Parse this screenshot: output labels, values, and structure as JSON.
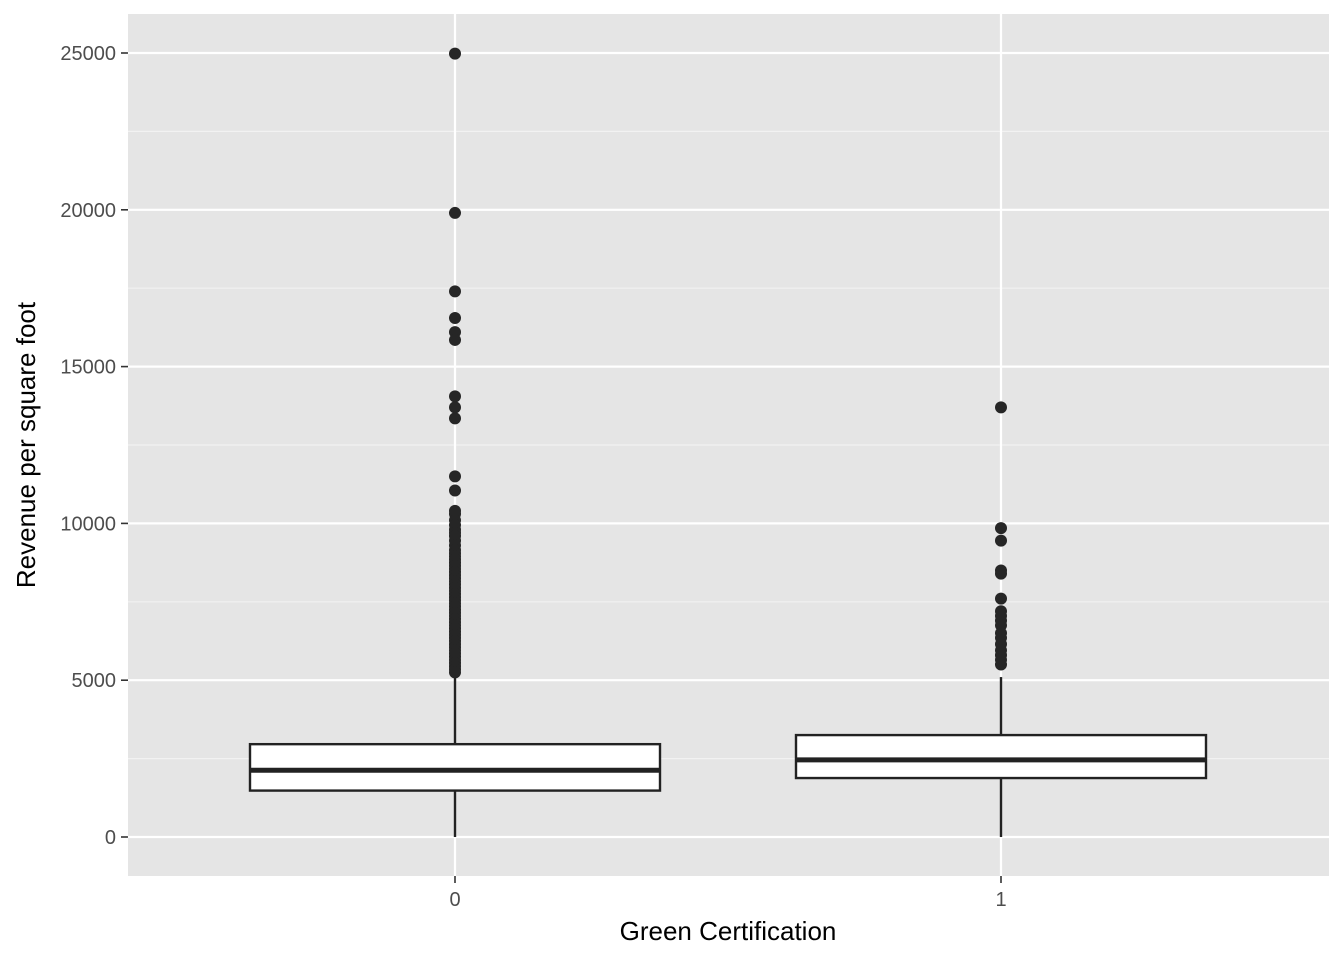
{
  "chart_data": {
    "type": "boxplot",
    "title": "",
    "xlabel": "Green Certification",
    "ylabel": "Revenue per square foot",
    "categories": [
      "0",
      "1"
    ],
    "ylim": [
      -1200,
      26200
    ],
    "yticks": [
      0,
      5000,
      10000,
      15000,
      20000,
      25000
    ],
    "ytick_labels": [
      "0",
      "5000",
      "10000",
      "15000",
      "20000",
      "25000"
    ],
    "grid": true,
    "legend": "none",
    "colors": {
      "panel_background": "#e5e5e5",
      "grid_line": "#ffffff",
      "box_fill": "#ffffff",
      "box_stroke": "#222222",
      "outlier": "#262626"
    },
    "boxes": [
      {
        "category": "0",
        "whisker_low": 0,
        "q1": 1480,
        "median": 2130,
        "q3": 2960,
        "whisker_high": 5200,
        "outliers": [
          24980,
          19900,
          17400,
          16550,
          16100,
          15850,
          14050,
          13700,
          13350,
          11500,
          11050,
          10400,
          10300,
          10100,
          9950,
          9800,
          9700,
          9600,
          9450,
          9300,
          9150,
          9050,
          8950,
          8850,
          8750,
          8650,
          8550,
          8450,
          8350,
          8250,
          8150,
          8050,
          7950,
          7850,
          7750,
          7650,
          7550,
          7450,
          7350,
          7250,
          7150,
          7050,
          6950,
          6850,
          6750,
          6650,
          6550,
          6450,
          6350,
          6250,
          6150,
          6050,
          5950,
          5850,
          5750,
          5650,
          5550,
          5450,
          5350,
          5250
        ]
      },
      {
        "category": "1",
        "whisker_low": 0,
        "q1": 1880,
        "median": 2460,
        "q3": 3250,
        "whisker_high": 5100,
        "outliers": [
          13700,
          9850,
          9450,
          8500,
          8400,
          7600,
          7200,
          7050,
          6900,
          6750,
          6500,
          6350,
          6150,
          5950,
          5800,
          5650,
          5500
        ]
      }
    ]
  }
}
